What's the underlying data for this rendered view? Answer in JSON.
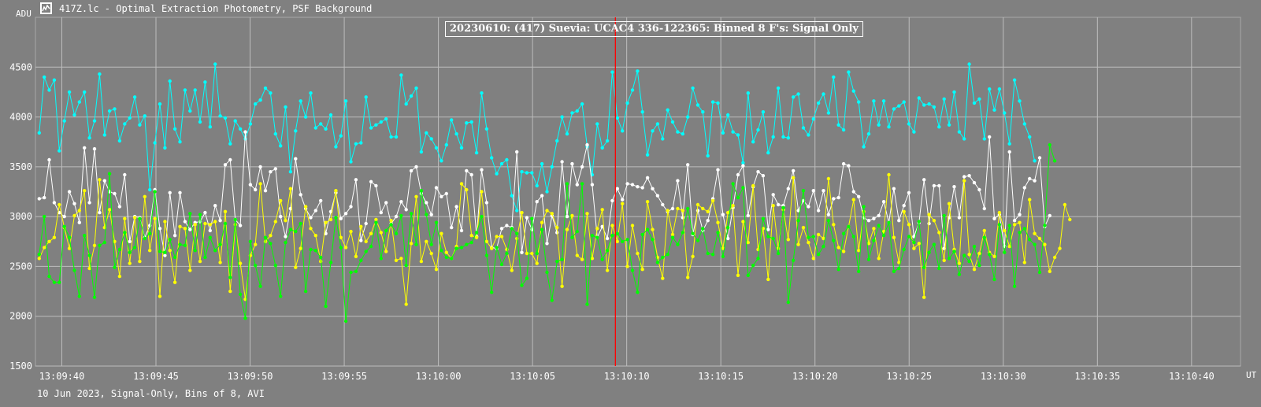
{
  "window": {
    "title": "417Z.lc - Optimal Extraction Photometry, PSF Background",
    "icon": "lightcurve-app-icon"
  },
  "footer": "10 Jun 2023, Signal-Only, Bins of 8, AVI",
  "chart_data": {
    "type": "line",
    "title": "20230610: (417) Suevia: UCAC4 336-122365:  Binned 8 F's: Signal Only",
    "ylabel": "ADU",
    "xlabel": "UT",
    "ylim": [
      1500,
      5000
    ],
    "xlim": [
      "13:09:38.6",
      "13:10:42.6"
    ],
    "y_ticks": [
      1500,
      2000,
      2500,
      3000,
      3500,
      4000,
      4500
    ],
    "x_ticks": [
      "13:09:40",
      "13:09:45",
      "13:09:50",
      "13:09:55",
      "13:10:00",
      "13:10:05",
      "13:10:10",
      "13:10:15",
      "13:10:20",
      "13:10:25",
      "13:10:30",
      "13:10:35",
      "13:10:40"
    ],
    "grid": true,
    "legend": "none",
    "marker": {
      "time": "13:10:09.4",
      "color": "#ff0000"
    },
    "x_start": "13:09:38.8",
    "x_step_seconds": 0.267,
    "series": [
      {
        "color": "#00ffff",
        "values": [
          3840,
          4400,
          4270,
          4370,
          3660,
          3960,
          4250,
          4020,
          4150,
          4250,
          3790,
          3960,
          4430,
          3820,
          4060,
          4080,
          3760,
          3930,
          3990,
          4200,
          3920,
          4010,
          3270,
          3740,
          4130,
          3690,
          4360,
          3880,
          3750,
          4270,
          4060,
          4270,
          3950,
          4350,
          3900,
          4530,
          4010,
          3990,
          3730,
          3960,
          3880,
          3780,
          3930,
          4130,
          4170,
          4290,
          4240,
          3830,
          3710,
          4100,
          3450,
          3860,
          4160,
          4000,
          4240,
          3890,
          3930,
          3880,
          4020,
          3700,
          3810,
          4160,
          3550,
          3730,
          3740,
          4200,
          3890,
          3920,
          3950,
          3980,
          3800,
          3800,
          4420,
          4130,
          4210,
          4290,
          3650,
          3840,
          3780,
          3690,
          3560,
          3720,
          3970,
          3830,
          3690,
          3940,
          3950,
          3640,
          4240,
          3880,
          3590,
          3430,
          3530,
          3570,
          3210,
          3060,
          3450,
          3440,
          3440,
          3310,
          3530,
          3250,
          3500,
          3760,
          4000,
          3830,
          4040,
          4060,
          4130,
          3700,
          3420,
          3930,
          3690,
          3760,
          4450,
          3990,
          3860,
          4140,
          4270,
          4460,
          4050,
          3620,
          3860,
          3930,
          3780,
          4070,
          3950,
          3850,
          3830,
          4000,
          4290,
          4120,
          4050,
          3610,
          4150,
          4140,
          3840,
          4020,
          3850,
          3820,
          3540,
          4240,
          3750,
          3870,
          4050,
          3640,
          3800,
          4290,
          3800,
          3790,
          4200,
          4230,
          3890,
          3820,
          3980,
          4140,
          4230,
          4040,
          4400,
          3920,
          3870,
          4450,
          4260,
          4150,
          3700,
          3830,
          4160,
          3920,
          4160,
          3900,
          4080,
          4110,
          4150,
          3930,
          3850,
          4190,
          4120,
          4130,
          4100,
          3900,
          4180,
          3920,
          4250,
          3850,
          3780,
          4530,
          4140,
          4180,
          3780,
          4280,
          4070,
          4280,
          4040,
          3730,
          4370,
          4160,
          3930,
          3800,
          3560
        ]
      },
      {
        "color": "#ffffff",
        "values": [
          3180,
          3190,
          3570,
          3140,
          3040,
          3000,
          3250,
          3130,
          2940,
          3690,
          3140,
          3680,
          3040,
          3360,
          3250,
          3230,
          3100,
          3420,
          2750,
          3000,
          2990,
          2790,
          2910,
          3270,
          2880,
          2610,
          3240,
          2810,
          3240,
          2950,
          2870,
          2940,
          2950,
          3040,
          2860,
          3110,
          2960,
          3520,
          3570,
          2970,
          2910,
          3850,
          3320,
          3270,
          3500,
          3260,
          3450,
          3480,
          3000,
          2800,
          3080,
          3580,
          3220,
          3080,
          2990,
          3060,
          3160,
          2830,
          3050,
          3240,
          2980,
          3030,
          3100,
          3370,
          2760,
          2930,
          3350,
          3310,
          3040,
          3140,
          2930,
          3000,
          3150,
          3070,
          3460,
          3500,
          3230,
          3140,
          3020,
          3290,
          3200,
          3230,
          2890,
          3100,
          2860,
          3460,
          3420,
          2800,
          3470,
          3140,
          2690,
          2680,
          2880,
          2910,
          2890,
          3650,
          2640,
          2990,
          2870,
          3150,
          3210,
          2730,
          3010,
          2840,
          3550,
          3000,
          3530,
          3320,
          3500,
          3720,
          3320,
          2790,
          2900,
          2780,
          3160,
          3280,
          3170,
          3330,
          3320,
          3300,
          3290,
          3390,
          3280,
          3210,
          3120,
          3050,
          3080,
          3360,
          2990,
          3520,
          2820,
          3060,
          2860,
          2960,
          3180,
          3470,
          3020,
          2780,
          3090,
          3420,
          3510,
          3010,
          3300,
          3450,
          3410,
          2870,
          3220,
          3120,
          3110,
          3280,
          3460,
          3060,
          3160,
          3100,
          3260,
          3060,
          3260,
          3020,
          3180,
          3190,
          3530,
          3510,
          3250,
          3200,
          2990,
          2960,
          2980,
          3010,
          3150,
          2940,
          3280,
          2960,
          3110,
          3240,
          2800,
          2940,
          3370,
          2930,
          3310,
          3310,
          2680,
          2990,
          3300,
          2990,
          3400,
          3410,
          3340,
          3270,
          3080,
          3800,
          2980,
          3020,
          2700,
          3650,
          2960,
          3020,
          3290,
          3380,
          3360,
          3590,
          2900,
          3010
        ]
      },
      {
        "color": "#ffff00",
        "values": [
          2580,
          2690,
          2750,
          2790,
          3120,
          2890,
          2680,
          3010,
          3060,
          3260,
          2480,
          2710,
          3370,
          2890,
          3070,
          2750,
          2400,
          2980,
          2530,
          2990,
          2550,
          3200,
          2660,
          2980,
          2200,
          2950,
          2660,
          2340,
          2900,
          2880,
          2460,
          2920,
          2550,
          2930,
          2920,
          2950,
          2540,
          3050,
          2250,
          2920,
          2530,
          2170,
          2610,
          2720,
          3330,
          2750,
          2810,
          2950,
          3160,
          2960,
          3280,
          2490,
          2680,
          3100,
          2880,
          2810,
          2550,
          2940,
          2970,
          3260,
          2790,
          2690,
          2850,
          2600,
          2900,
          2750,
          2830,
          2970,
          2840,
          2650,
          2960,
          2560,
          2580,
          2120,
          2730,
          3200,
          2550,
          2750,
          2630,
          2470,
          2830,
          2640,
          2580,
          2700,
          3330,
          3270,
          2810,
          2790,
          3250,
          2750,
          2680,
          2800,
          2800,
          2670,
          2460,
          2780,
          3040,
          2630,
          2630,
          2530,
          2940,
          3060,
          3030,
          2890,
          2300,
          2870,
          3010,
          2610,
          2570,
          3030,
          2580,
          2880,
          3070,
          2460,
          2910,
          2750,
          3130,
          2500,
          2910,
          2630,
          2470,
          3150,
          2870,
          2590,
          2380,
          3060,
          2820,
          3080,
          3060,
          2390,
          2600,
          3120,
          3080,
          3050,
          3160,
          2940,
          2680,
          3040,
          3110,
          2410,
          2950,
          2740,
          3310,
          2670,
          2880,
          2370,
          3110,
          2680,
          3070,
          2770,
          3390,
          2720,
          2890,
          2740,
          2580,
          2820,
          2780,
          3380,
          2920,
          2690,
          2650,
          2900,
          3170,
          2660,
          3050,
          2730,
          2880,
          2580,
          2850,
          3420,
          2790,
          2540,
          3050,
          2920,
          2680,
          2730,
          2190,
          3020,
          2960,
          2840,
          2560,
          3130,
          2670,
          2530,
          3360,
          2620,
          2470,
          2630,
          2860,
          2640,
          2600,
          3040,
          2860,
          2700,
          2920,
          2940,
          2540,
          3170,
          2830,
          2780,
          2720,
          2450,
          2590,
          2680,
          3120,
          2970
        ]
      },
      {
        "color": "#00ff00",
        "values": [
          2620,
          3000,
          2400,
          2340,
          2340,
          2900,
          2790,
          2460,
          2200,
          2810,
          2610,
          2190,
          2710,
          2740,
          3430,
          2490,
          2670,
          2840,
          2640,
          2690,
          2980,
          2780,
          2830,
          3250,
          2650,
          2640,
          2770,
          2590,
          2720,
          2710,
          3030,
          2660,
          3020,
          2590,
          2790,
          2660,
          2720,
          2930,
          2390,
          2970,
          2220,
          1980,
          2750,
          2510,
          2300,
          2790,
          2730,
          2510,
          2200,
          2740,
          2870,
          2850,
          2930,
          2250,
          2670,
          2660,
          2590,
          2100,
          2540,
          2990,
          2690,
          1950,
          2440,
          2450,
          2560,
          2650,
          2700,
          2940,
          2580,
          2860,
          2920,
          2830,
          3010,
          2510,
          3030,
          2720,
          3260,
          3020,
          2720,
          2940,
          2660,
          2590,
          2580,
          2680,
          2690,
          2720,
          2740,
          2840,
          3000,
          2610,
          2240,
          2690,
          2520,
          2630,
          2880,
          2830,
          2310,
          2380,
          2980,
          2630,
          2870,
          2440,
          2160,
          2550,
          2570,
          3330,
          2790,
          2850,
          3330,
          2120,
          2810,
          2790,
          2570,
          2660,
          2810,
          2830,
          2750,
          2770,
          2460,
          2240,
          2820,
          2870,
          2770,
          2540,
          2590,
          2620,
          2790,
          2720,
          2840,
          3080,
          2830,
          2760,
          2880,
          2630,
          2620,
          2840,
          2600,
          2890,
          3330,
          3190,
          3290,
          2410,
          2510,
          2580,
          2980,
          2800,
          2780,
          2630,
          3090,
          2140,
          2560,
          2960,
          3260,
          2790,
          2800,
          2620,
          2700,
          2960,
          2760,
          2470,
          2830,
          2900,
          2800,
          2450,
          3100,
          2570,
          2760,
          2910,
          2810,
          2940,
          2450,
          2480,
          2670,
          2800,
          2740,
          2950,
          2490,
          2640,
          2720,
          2480,
          3010,
          2580,
          2650,
          2420,
          2610,
          2550,
          2700,
          2510,
          2790,
          2620,
          2370,
          2920,
          2640,
          2910,
          2300,
          2840,
          2880,
          2770,
          2720,
          2440,
          2910,
          3720,
          3560
        ]
      }
    ]
  }
}
